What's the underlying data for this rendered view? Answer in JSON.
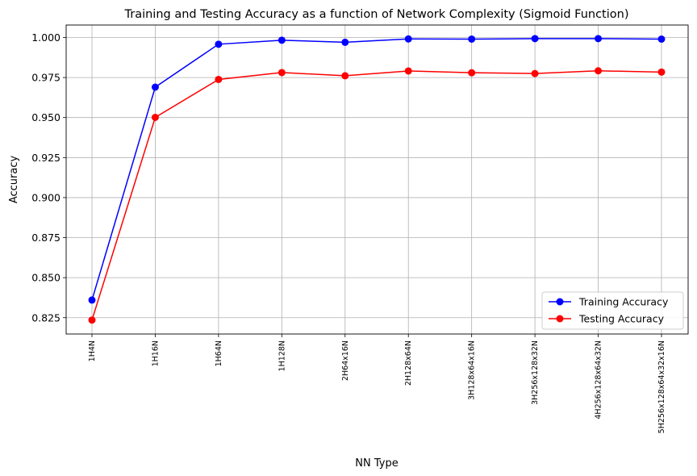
{
  "chart_data": {
    "type": "line",
    "title": "Training and Testing Accuracy as a function of Network Complexity (Sigmoid Function)",
    "xlabel": "NN Type",
    "ylabel": "Accuracy",
    "categories": [
      "1H4N",
      "1H16N",
      "1H64N",
      "1H128N",
      "2H64x16N",
      "2H128x64N",
      "3H128x64x16N",
      "3H256x128x32N",
      "4H256x128x64x32N",
      "5H256x128x64x32x16N"
    ],
    "series": [
      {
        "name": "Training Accuracy",
        "color": "#0000ff",
        "values": [
          0.836,
          0.969,
          0.9958,
          0.9983,
          0.997,
          0.9991,
          0.999,
          0.9993,
          0.9993,
          0.999
        ]
      },
      {
        "name": "Testing Accuracy",
        "color": "#ff0000",
        "values": [
          0.8235,
          0.9501,
          0.9738,
          0.9781,
          0.9761,
          0.9791,
          0.978,
          0.9775,
          0.9792,
          0.9784
        ]
      }
    ],
    "ylim": [
      0.8148,
      1.0078
    ],
    "yticks": [
      "0.825",
      "0.850",
      "0.875",
      "0.900",
      "0.925",
      "0.950",
      "0.975",
      "1.000"
    ],
    "grid": true,
    "legend_position": "lower-right",
    "marker": "circle"
  }
}
